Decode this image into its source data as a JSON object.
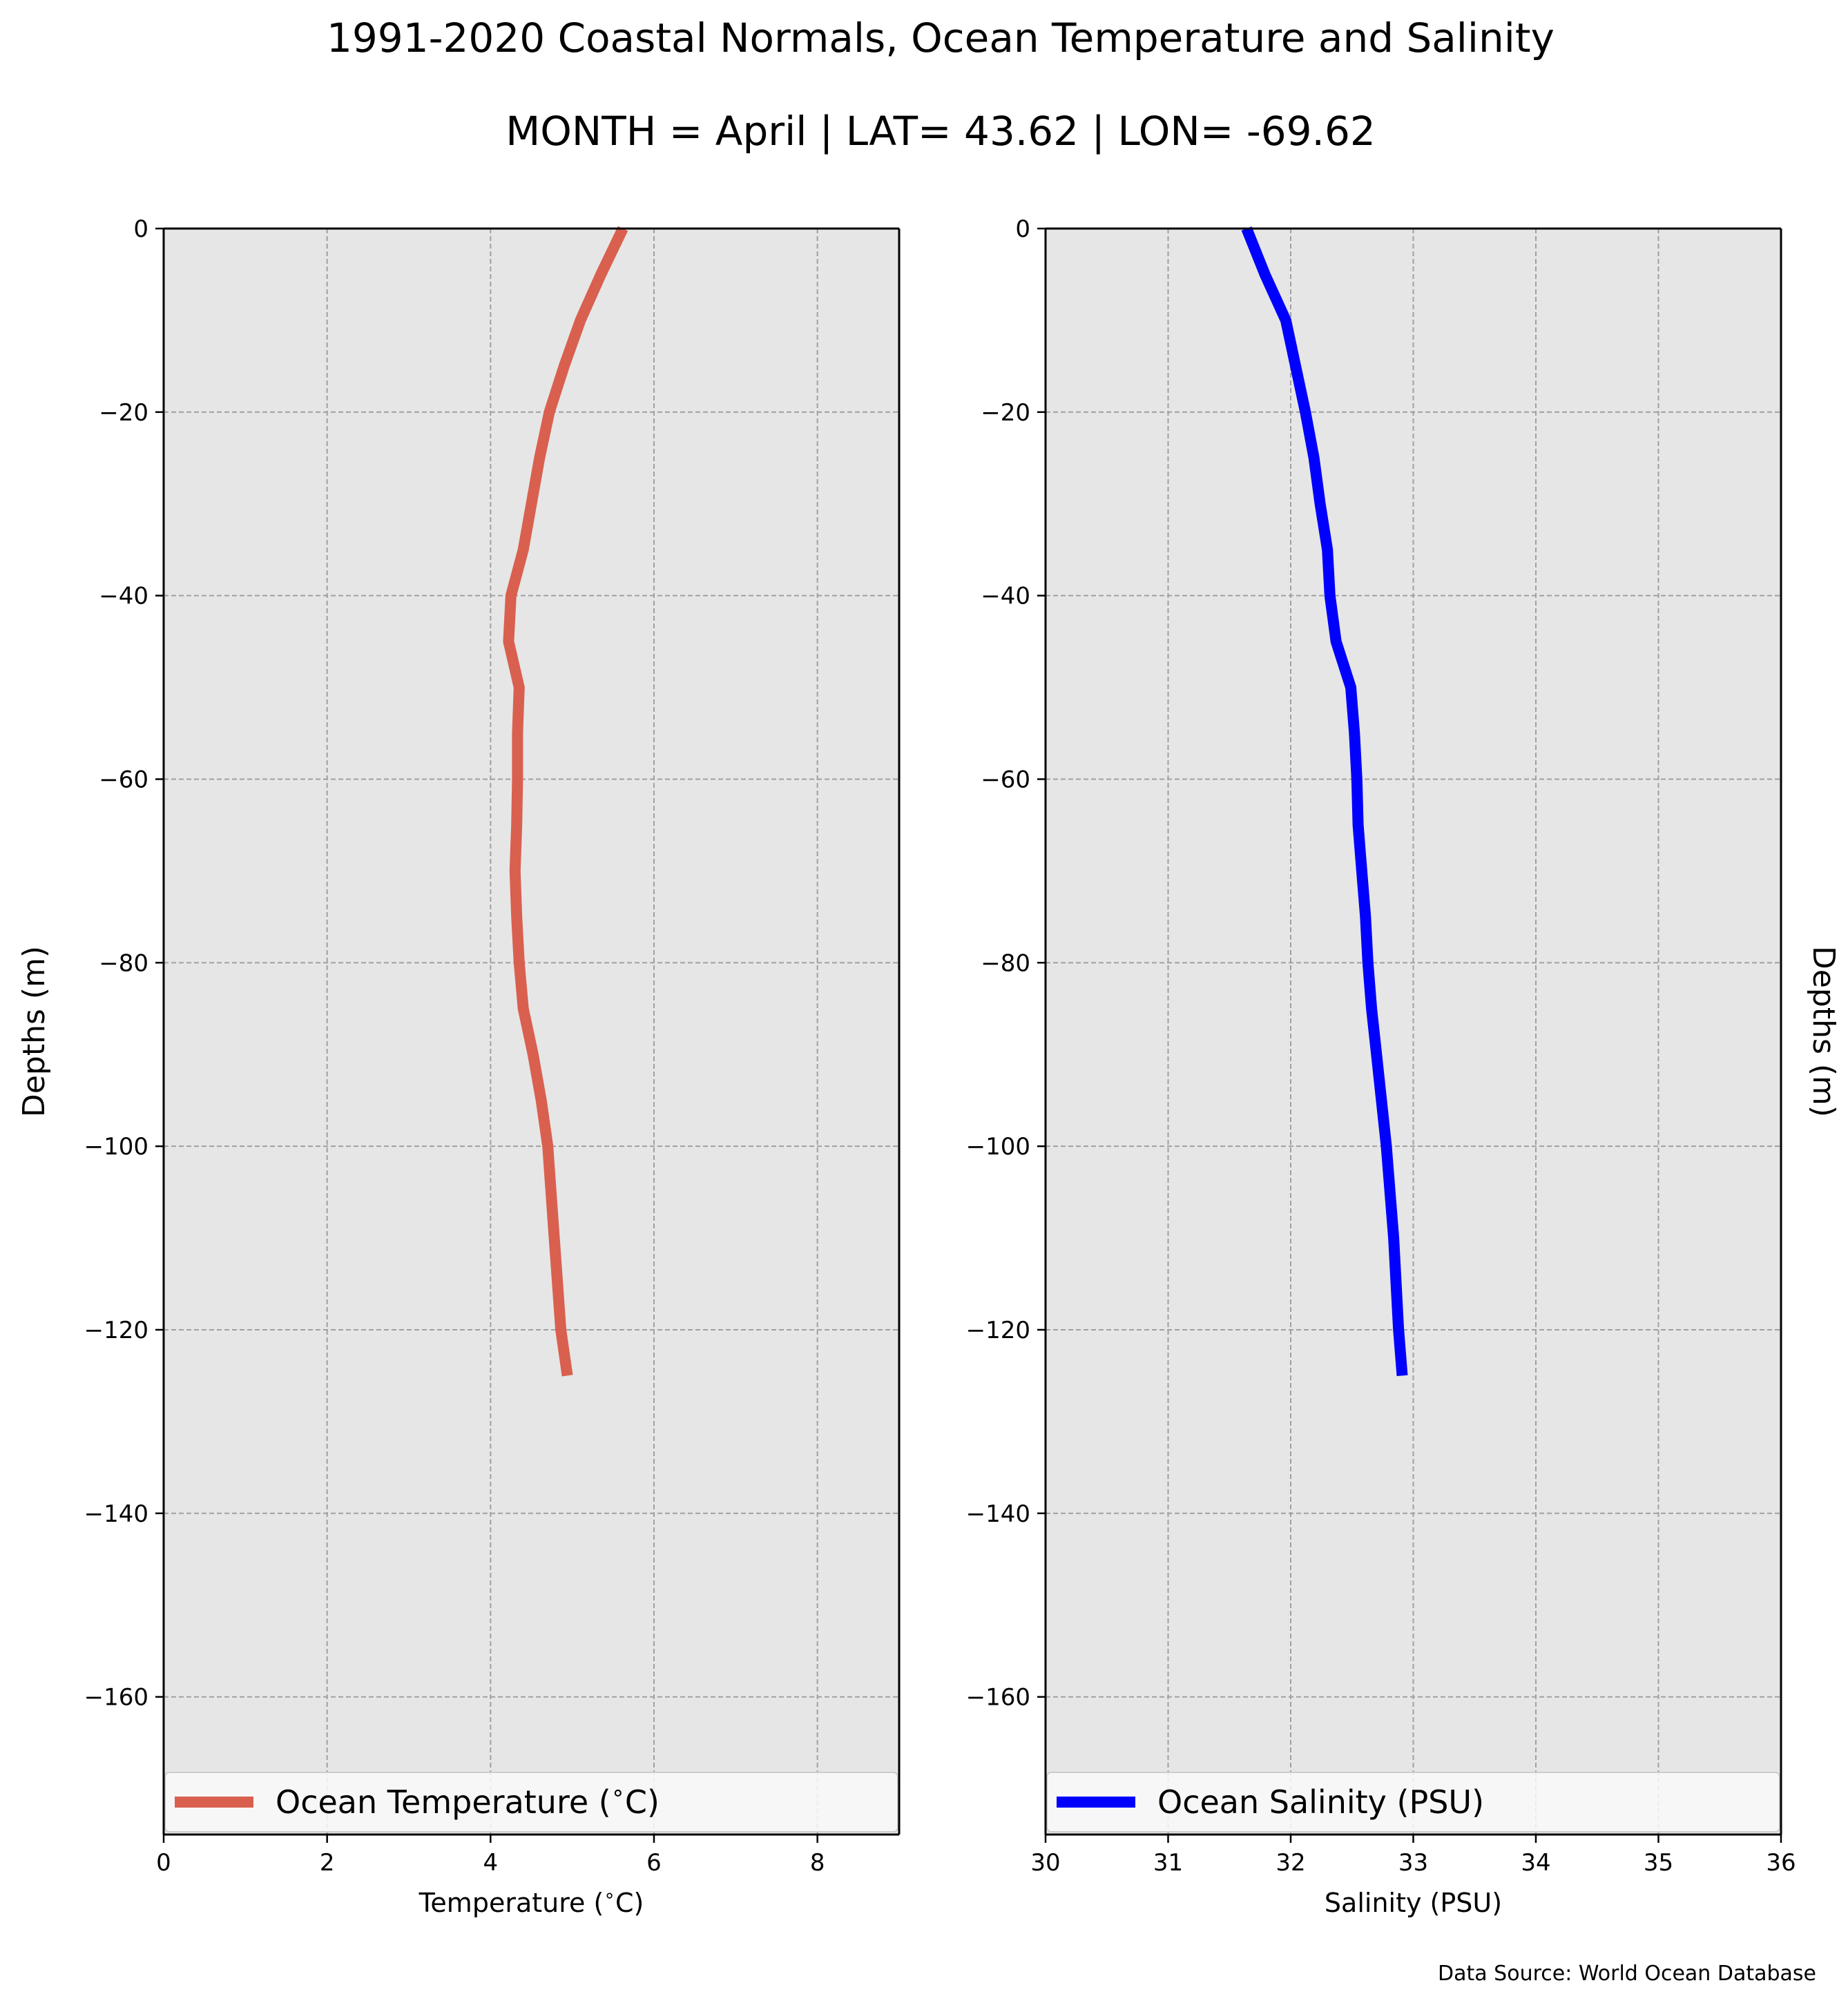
{
  "title": "1991-2020 Coastal Normals, Ocean Temperature and Salinity",
  "subtitle": "MONTH = April | LAT= 43.62 | LON= -69.62",
  "source": "Data Source: World Ocean Database",
  "colors": {
    "plot_background": "#e6e6e6",
    "grid": "#a0a0a0",
    "temperature_line": "#d9604f",
    "salinity_line": "#0000ff",
    "legend_background": "#f9f9f9"
  },
  "chart_data": [
    {
      "type": "line",
      "series": [
        {
          "name": "Ocean Temperature ($^\\circ$C)",
          "x": [
            5.62,
            5.35,
            5.1,
            4.9,
            4.72,
            4.6,
            4.5,
            4.4,
            4.25,
            4.22,
            4.35,
            4.33,
            4.33,
            4.32,
            4.3,
            4.32,
            4.35,
            4.4,
            4.52,
            4.62,
            4.7,
            4.78,
            4.86,
            4.94
          ],
          "y": [
            0,
            -5,
            -10,
            -15,
            -20,
            -25,
            -30,
            -35,
            -40,
            -45,
            -50,
            -55,
            -60,
            -65,
            -70,
            -75,
            -80,
            -85,
            -90,
            -95,
            -100,
            -110,
            -120,
            -125
          ]
        }
      ],
      "title": "",
      "xlabel": "Temperature ($^\\circ$C)",
      "ylabel": "Depths (m)",
      "xlim": [
        0,
        9
      ],
      "ylim": [
        -175,
        0
      ],
      "xticks": [
        "0",
        "2",
        "4",
        "6",
        "8"
      ],
      "yticks": [
        "0",
        "−20",
        "−40",
        "−60",
        "−80",
        "−100",
        "−120",
        "−140",
        "−160"
      ],
      "grid": true,
      "legend": "bottom"
    },
    {
      "type": "line",
      "series": [
        {
          "name": "Ocean Salinity (PSU)",
          "x": [
            31.64,
            31.79,
            31.96,
            32.04,
            32.12,
            32.19,
            32.24,
            32.3,
            32.32,
            32.37,
            32.49,
            32.52,
            32.54,
            32.55,
            32.58,
            32.61,
            32.63,
            32.66,
            32.7,
            32.74,
            32.78,
            32.84,
            32.88,
            32.91
          ],
          "y": [
            0,
            -5,
            -10,
            -15,
            -20,
            -25,
            -30,
            -35,
            -40,
            -45,
            -50,
            -55,
            -60,
            -65,
            -70,
            -75,
            -80,
            -85,
            -90,
            -95,
            -100,
            -110,
            -120,
            -125
          ]
        }
      ],
      "title": "",
      "xlabel": "Salinity (PSU)",
      "ylabel": "Depths (m)",
      "xlim": [
        30,
        36
      ],
      "ylim": [
        -175,
        0
      ],
      "xticks": [
        "30",
        "31",
        "32",
        "33",
        "34",
        "35",
        "36"
      ],
      "yticks": [
        "0",
        "−20",
        "−40",
        "−60",
        "−80",
        "−100",
        "−120",
        "−140",
        "−160"
      ],
      "grid": true,
      "legend": "bottom"
    }
  ]
}
